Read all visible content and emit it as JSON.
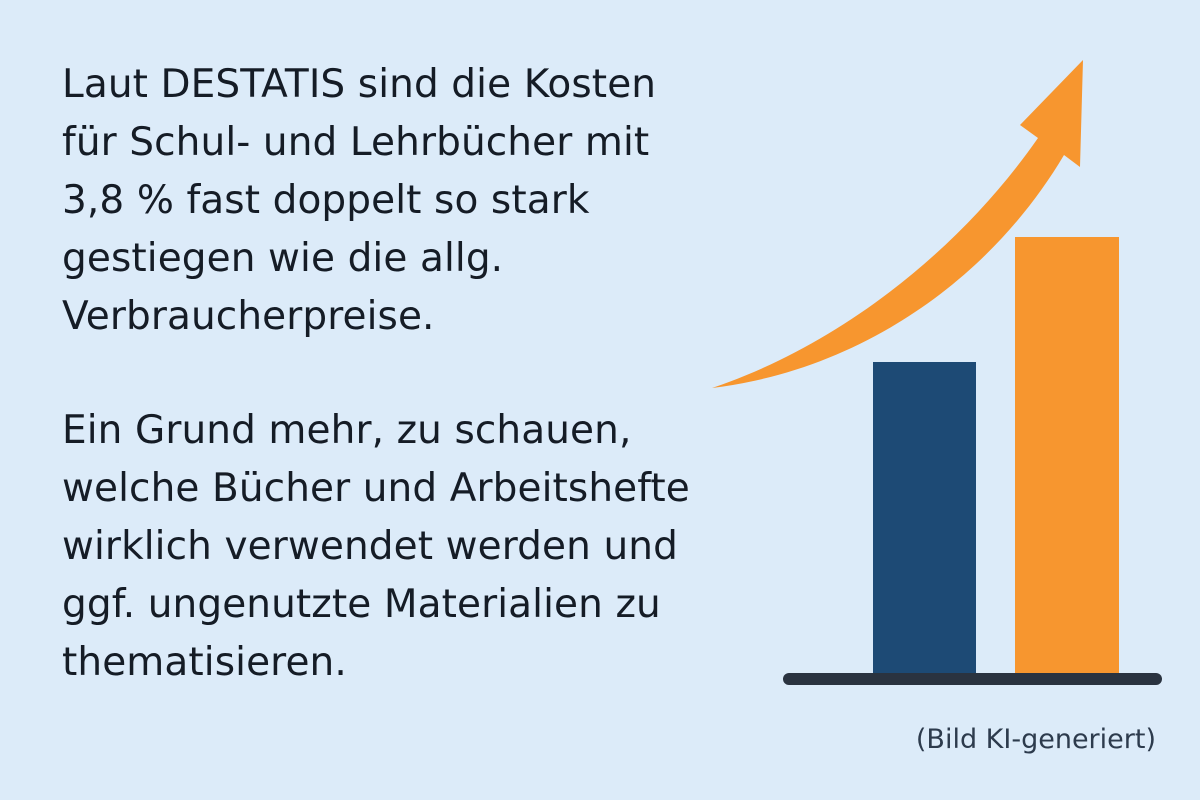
{
  "main": {
    "paragraph_1_lines": [
      "Laut DESTATIS sind die Kosten",
      "für Schul- und Lehrbücher mit",
      "3,8 % fast doppelt so stark",
      "gestiegen wie die allg.",
      "Verbraucherpreise."
    ],
    "paragraph_2_lines": [
      "Ein Grund mehr, zu schauen,",
      "welche Bücher und Arbeitshefte",
      "wirklich verwendet werden und",
      "ggf. ungenutzte Materialien zu",
      "thematisieren."
    ],
    "caption": "(Bild KI-generiert)"
  },
  "illustration": {
    "icon": "rising-bar-chart-with-arrow",
    "colors": {
      "background": "#dcebf9",
      "bar_dark": "#1d4a75",
      "bar_orange": "#f7962f",
      "arrow": "#f7962f",
      "baseline": "#2a3340"
    }
  }
}
